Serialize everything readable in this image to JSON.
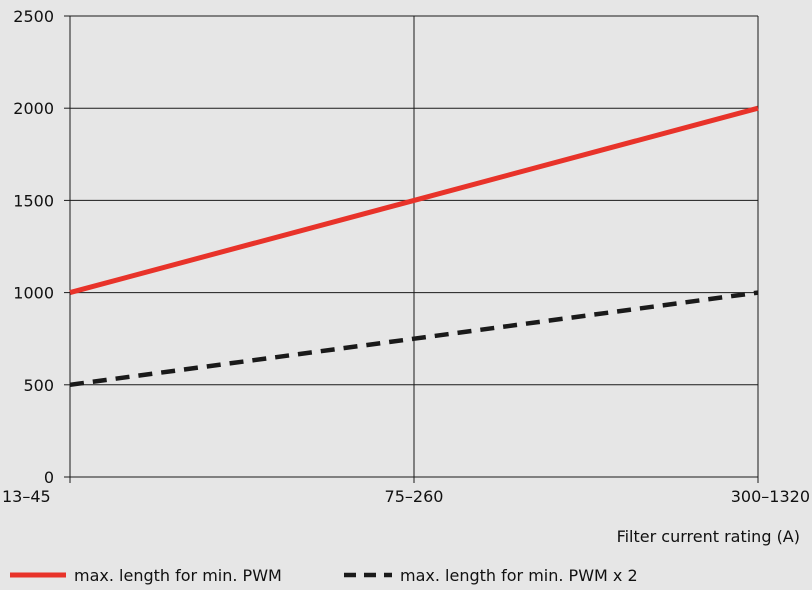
{
  "chart_data": {
    "type": "line",
    "title": "",
    "xlabel": "Filter current rating (A)",
    "ylabel": "",
    "categories": [
      "13–45",
      "75–260",
      "300–1320"
    ],
    "ylim": [
      0,
      2500
    ],
    "yticks": [
      0,
      500,
      1000,
      1500,
      2000,
      2500
    ],
    "grid": true,
    "legend_position": "bottom",
    "series": [
      {
        "name": "max. length for min. PWM",
        "values": [
          1000,
          1500,
          2000
        ],
        "color": "#e8332a",
        "dash": "solid"
      },
      {
        "name": "max. length for min. PWM x 2",
        "values": [
          500,
          750,
          1000
        ],
        "color": "#1a1a1a",
        "dash": "dashed"
      }
    ]
  }
}
